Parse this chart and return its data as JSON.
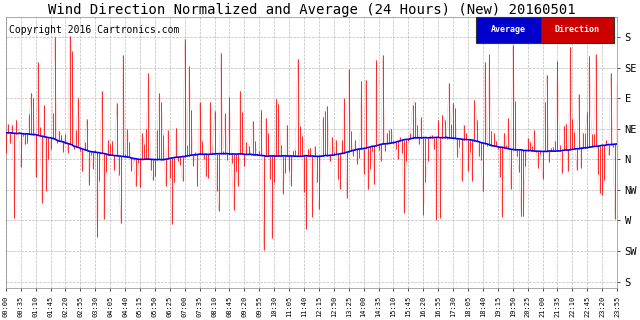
{
  "title": "Wind Direction Normalized and Average (24 Hours) (New) 20160501",
  "copyright": "Copyright 2016 Cartronics.com",
  "ytick_labels": [
    "S",
    "SE",
    "E",
    "NE",
    "N",
    "NW",
    "W",
    "SW",
    "S"
  ],
  "ytick_values": [
    360,
    315,
    270,
    225,
    180,
    135,
    90,
    45,
    0
  ],
  "ylim": [
    -10,
    390
  ],
  "bg_color": "#ffffff",
  "grid_color": "#aaaaaa",
  "direction_color": "#ff0000",
  "average_color": "#0000ff",
  "title_fontsize": 10,
  "copyright_fontsize": 7,
  "n_points": 288,
  "avg_base": 200,
  "avg_amplitude": 25
}
